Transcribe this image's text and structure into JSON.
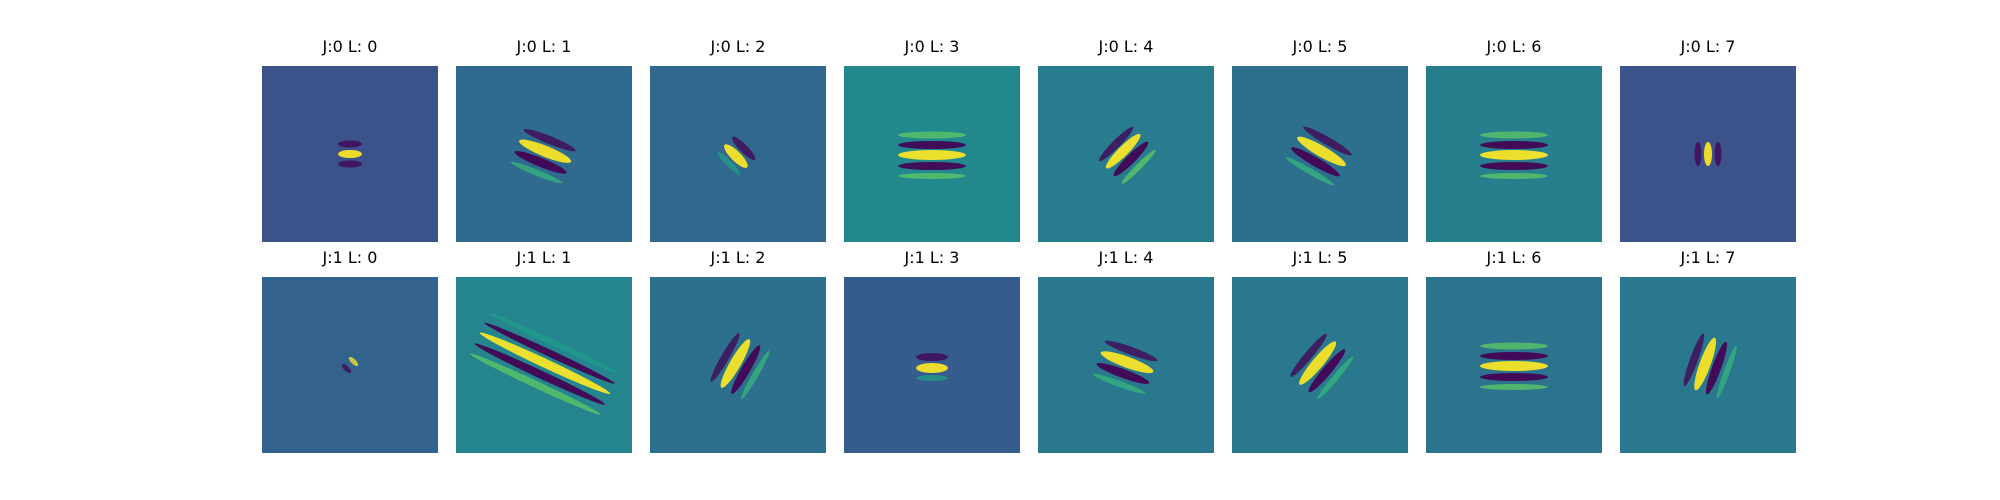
{
  "figure": {
    "colormap": "viridis",
    "panels": [
      {
        "title": "J:0 L: 0",
        "background": "#3b528b",
        "angle": 0,
        "kind": "tight"
      },
      {
        "title": "J:0 L: 1",
        "background": "#2f6b8e",
        "angle": 22,
        "kind": "wave"
      },
      {
        "title": "J:0 L: 2",
        "background": "#31688e",
        "angle": 45,
        "kind": "small"
      },
      {
        "title": "J:0 L: 3",
        "background": "#23888e",
        "angle": 0,
        "kind": "wide"
      },
      {
        "title": "J:0 L: 4",
        "background": "#287c8e",
        "angle": -45,
        "kind": "diag"
      },
      {
        "title": "J:0 L: 5",
        "background": "#2d708e",
        "angle": 30,
        "kind": "wave"
      },
      {
        "title": "J:0 L: 6",
        "background": "#277f8e",
        "angle": 0,
        "kind": "wide"
      },
      {
        "title": "J:0 L: 7",
        "background": "#3b528b",
        "angle": 90,
        "kind": "tight"
      },
      {
        "title": "J:1 L: 0",
        "background": "#33638d",
        "angle": 45,
        "kind": "dot"
      },
      {
        "title": "J:1 L: 1",
        "background": "#25858e",
        "angle": 25,
        "kind": "long"
      },
      {
        "title": "J:1 L: 2",
        "background": "#2d708e",
        "angle": -60,
        "kind": "wave"
      },
      {
        "title": "J:1 L: 3",
        "background": "#365c8d",
        "angle": 0,
        "kind": "small"
      },
      {
        "title": "J:1 L: 4",
        "background": "#2a788e",
        "angle": 20,
        "kind": "wave"
      },
      {
        "title": "J:1 L: 5",
        "background": "#2a788e",
        "angle": -50,
        "kind": "wave"
      },
      {
        "title": "J:1 L: 6",
        "background": "#2c738e",
        "angle": 0,
        "kind": "wide"
      },
      {
        "title": "J:1 L: 7",
        "background": "#2a788e",
        "angle": -70,
        "kind": "wave"
      }
    ]
  }
}
